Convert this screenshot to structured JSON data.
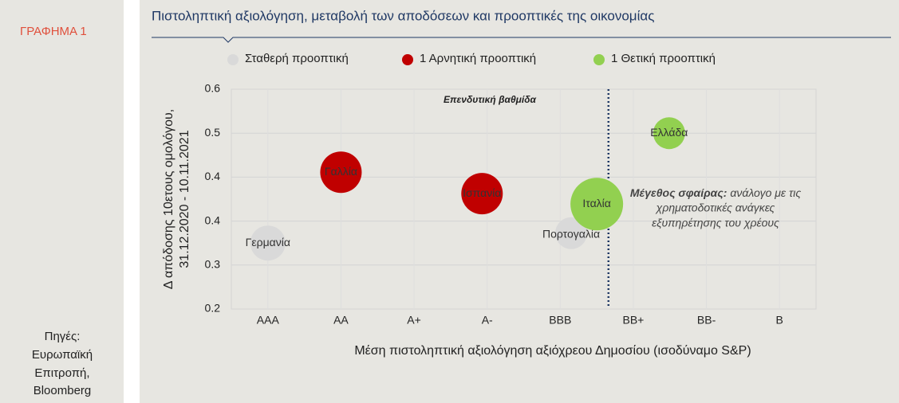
{
  "sidebar": {
    "label": "ΓΡΑΦΗΜΑ 1",
    "sources": [
      "Πηγές:",
      "Ευρωπαϊκή",
      "Επιτροπή,",
      "Bloomberg"
    ]
  },
  "chart_data": {
    "type": "scatter",
    "title": "Πιστοληπτική αξιολόγηση, μεταβολή των αποδόσεων και προοπτικές της οικονομίας",
    "y_label": [
      "Δ απόδοσης 10ετους ομολόγου,",
      "31.12.2020 - 10.11.2021"
    ],
    "x_label": "Μέση πιστοληπτική αξιολόγηση αξιόχρεου Δημοσίου (ισοδύναμο S&P)",
    "xlim": [
      -0.5,
      7.5
    ],
    "xticks": [
      {
        "value": 0,
        "label": "AAA"
      },
      {
        "value": 1,
        "label": "AA"
      },
      {
        "value": 2,
        "label": "A+"
      },
      {
        "value": 3,
        "label": "A-"
      },
      {
        "value": 4,
        "label": "BBB"
      },
      {
        "value": 5,
        "label": "BB+"
      },
      {
        "value": 6,
        "label": "BB-"
      },
      {
        "value": 7,
        "label": "B"
      }
    ],
    "ylim": [
      0.2,
      0.6
    ],
    "yticks": [
      {
        "value": 0.6,
        "label": "0.6"
      },
      {
        "value": 0.52,
        "label": "0.5"
      },
      {
        "value": 0.44,
        "label": "0.4"
      },
      {
        "value": 0.36,
        "label": "0.4"
      },
      {
        "value": 0.28,
        "label": "0.3"
      },
      {
        "value": 0.2,
        "label": "0.2"
      }
    ],
    "grid": true,
    "threshold": {
      "x": 4.66,
      "label": "Επενδυτική βαθμίδα"
    },
    "size_note": {
      "label": "Μέγεθος σφαίρας:",
      "lines": [
        "ανάλογο με τις",
        "χρηματοδοτικές ανάγκες",
        "εξυπηρέτησης του χρέους"
      ]
    },
    "series": [
      {
        "name": "Σταθερή προοπτική",
        "color": "#d9d9d9",
        "labels": [
          "Γερμανία",
          "Πορτογαλία"
        ],
        "x": [
          0,
          4.15
        ],
        "values": [
          0.32,
          0.338
        ],
        "sizes": [
          22,
          20
        ]
      },
      {
        "name": "1 Αρνητική προοπτική",
        "color": "#c00000",
        "labels": [
          "Γαλλία",
          "Ισπανία"
        ],
        "x": [
          1,
          2.93
        ],
        "values": [
          0.449,
          0.41
        ],
        "sizes": [
          26,
          26
        ]
      },
      {
        "name": "1 Θετική προοπτική",
        "color": "#92d050",
        "labels": [
          "Ιταλία",
          "Ελλάδα"
        ],
        "x": [
          4.5,
          5.49
        ],
        "values": [
          0.391,
          0.52
        ],
        "sizes": [
          33,
          20
        ]
      }
    ]
  }
}
